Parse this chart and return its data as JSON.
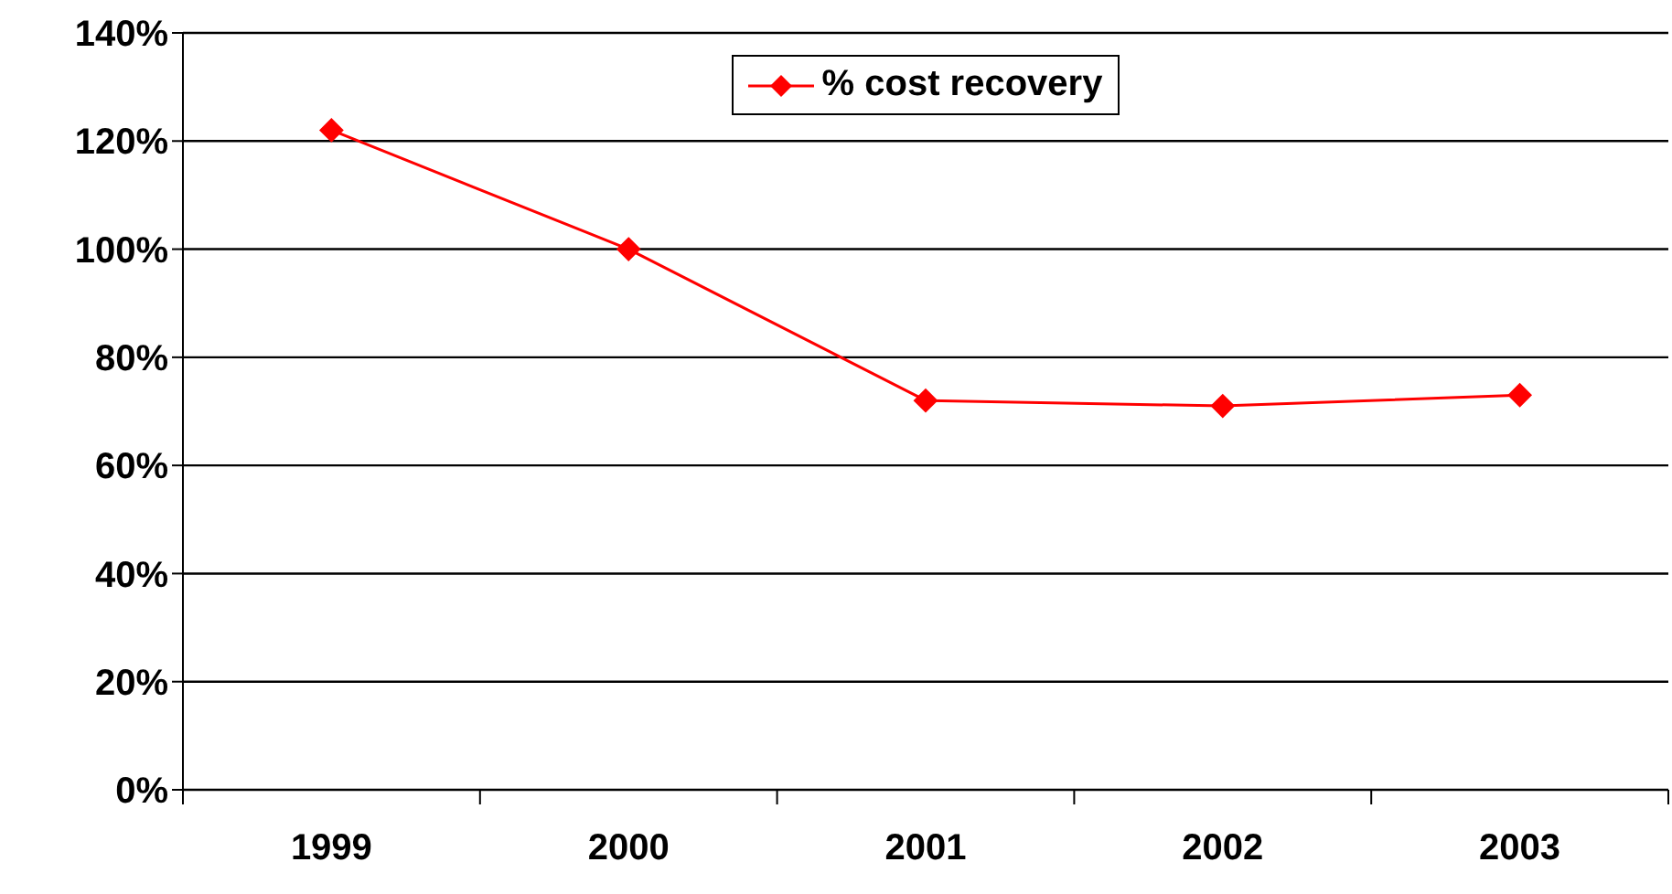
{
  "chart_data": {
    "type": "line",
    "categories": [
      "1999",
      "2000",
      "2001",
      "2002",
      "2003"
    ],
    "series": [
      {
        "name": "% cost recovery",
        "color": "#ff0000",
        "values": [
          122,
          100,
          72,
          71,
          73
        ]
      }
    ],
    "ylim": [
      0,
      140
    ],
    "yticks": [
      {
        "value": 0,
        "label": "0%"
      },
      {
        "value": 20,
        "label": "20%"
      },
      {
        "value": 40,
        "label": "40%"
      },
      {
        "value": 60,
        "label": "60%"
      },
      {
        "value": 80,
        "label": "80%"
      },
      {
        "value": 100,
        "label": "100%"
      },
      {
        "value": 120,
        "label": "120%"
      },
      {
        "value": 140,
        "label": "140%"
      }
    ],
    "grid": "y",
    "legend": "top",
    "marker": "diamond",
    "line_style": "solid"
  }
}
